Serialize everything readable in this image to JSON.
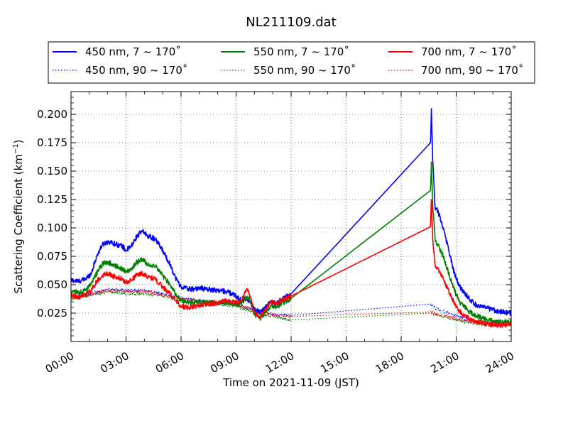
{
  "chart_data": {
    "type": "line",
    "title": "NL211109.dat",
    "xlabel": "Time on 2021-11-09 (JST)",
    "ylabel_main": "Scattering Coefficient (km",
    "ylabel_sup": "−1",
    "ylabel_tail": ")",
    "xlim": [
      0,
      24
    ],
    "ylim": [
      0,
      0.22
    ],
    "x_ticks": [
      0,
      3,
      6,
      9,
      12,
      15,
      18,
      21,
      24
    ],
    "x_tick_labels": [
      "00:00",
      "03:00",
      "06:00",
      "09:00",
      "12:00",
      "15:00",
      "18:00",
      "21:00",
      "24:00"
    ],
    "y_ticks": [
      0.025,
      0.05,
      0.075,
      0.1,
      0.125,
      0.15,
      0.175,
      0.2
    ],
    "y_tick_labels": [
      "0.025",
      "0.050",
      "0.075",
      "0.100",
      "0.125",
      "0.150",
      "0.175",
      "0.200"
    ],
    "grid": true,
    "legend_placement": "top",
    "series": [
      {
        "name": "450 nm, 7 ~ 170˚",
        "color": "#0000ff",
        "style": "solid",
        "points": [
          [
            0,
            0.054
          ],
          [
            0.4,
            0.053
          ],
          [
            0.8,
            0.055
          ],
          [
            1.1,
            0.06
          ],
          [
            1.4,
            0.075
          ],
          [
            1.7,
            0.085
          ],
          [
            2.0,
            0.088
          ],
          [
            2.4,
            0.086
          ],
          [
            2.8,
            0.084
          ],
          [
            3.0,
            0.08
          ],
          [
            3.3,
            0.084
          ],
          [
            3.6,
            0.093
          ],
          [
            3.9,
            0.097
          ],
          [
            4.2,
            0.093
          ],
          [
            4.6,
            0.09
          ],
          [
            5.0,
            0.08
          ],
          [
            5.4,
            0.068
          ],
          [
            5.7,
            0.056
          ],
          [
            6.0,
            0.048
          ],
          [
            6.5,
            0.046
          ],
          [
            7.0,
            0.047
          ],
          [
            7.5,
            0.046
          ],
          [
            8.0,
            0.045
          ],
          [
            8.5,
            0.044
          ],
          [
            9.0,
            0.04
          ],
          [
            9.3,
            0.036
          ],
          [
            9.6,
            0.038
          ],
          [
            9.8,
            0.034
          ],
          [
            10.0,
            0.028
          ],
          [
            10.3,
            0.026
          ],
          [
            10.6,
            0.03
          ],
          [
            10.9,
            0.035
          ],
          [
            11.2,
            0.033
          ],
          [
            11.5,
            0.037
          ],
          [
            11.8,
            0.04
          ],
          [
            12.0,
            0.042
          ],
          [
            19.6,
            0.175
          ],
          [
            19.65,
            0.205
          ],
          [
            19.72,
            0.16
          ],
          [
            19.85,
            0.118
          ],
          [
            20.0,
            0.115
          ],
          [
            20.3,
            0.1
          ],
          [
            20.6,
            0.08
          ],
          [
            20.9,
            0.06
          ],
          [
            21.2,
            0.048
          ],
          [
            21.6,
            0.04
          ],
          [
            22.0,
            0.033
          ],
          [
            22.5,
            0.03
          ],
          [
            23.0,
            0.028
          ],
          [
            23.5,
            0.026
          ],
          [
            24.0,
            0.025
          ]
        ]
      },
      {
        "name": "550 nm, 7 ~ 170˚",
        "color": "#008000",
        "style": "solid",
        "points": [
          [
            0,
            0.044
          ],
          [
            0.4,
            0.043
          ],
          [
            0.8,
            0.045
          ],
          [
            1.1,
            0.05
          ],
          [
            1.4,
            0.06
          ],
          [
            1.7,
            0.068
          ],
          [
            2.0,
            0.07
          ],
          [
            2.4,
            0.067
          ],
          [
            2.8,
            0.064
          ],
          [
            3.0,
            0.061
          ],
          [
            3.3,
            0.064
          ],
          [
            3.6,
            0.07
          ],
          [
            3.9,
            0.072
          ],
          [
            4.2,
            0.068
          ],
          [
            4.6,
            0.066
          ],
          [
            5.0,
            0.058
          ],
          [
            5.4,
            0.05
          ],
          [
            5.7,
            0.042
          ],
          [
            6.0,
            0.036
          ],
          [
            6.5,
            0.034
          ],
          [
            7.0,
            0.035
          ],
          [
            7.5,
            0.034
          ],
          [
            8.0,
            0.034
          ],
          [
            8.5,
            0.035
          ],
          [
            9.0,
            0.032
          ],
          [
            9.3,
            0.034
          ],
          [
            9.6,
            0.04
          ],
          [
            9.8,
            0.035
          ],
          [
            10.0,
            0.024
          ],
          [
            10.3,
            0.02
          ],
          [
            10.6,
            0.026
          ],
          [
            10.9,
            0.032
          ],
          [
            11.2,
            0.03
          ],
          [
            11.5,
            0.034
          ],
          [
            11.8,
            0.036
          ],
          [
            12.0,
            0.038
          ],
          [
            19.6,
            0.133
          ],
          [
            19.65,
            0.158
          ],
          [
            19.72,
            0.12
          ],
          [
            19.85,
            0.09
          ],
          [
            20.0,
            0.085
          ],
          [
            20.3,
            0.075
          ],
          [
            20.6,
            0.06
          ],
          [
            20.9,
            0.045
          ],
          [
            21.2,
            0.035
          ],
          [
            21.6,
            0.028
          ],
          [
            22.0,
            0.023
          ],
          [
            22.5,
            0.02
          ],
          [
            23.0,
            0.018
          ],
          [
            23.5,
            0.017
          ],
          [
            24.0,
            0.017
          ]
        ]
      },
      {
        "name": "700 nm, 7 ~ 170˚",
        "color": "#ff0000",
        "style": "solid",
        "points": [
          [
            0,
            0.04
          ],
          [
            0.4,
            0.039
          ],
          [
            0.8,
            0.041
          ],
          [
            1.1,
            0.045
          ],
          [
            1.4,
            0.053
          ],
          [
            1.7,
            0.058
          ],
          [
            2.0,
            0.06
          ],
          [
            2.4,
            0.057
          ],
          [
            2.8,
            0.055
          ],
          [
            3.0,
            0.052
          ],
          [
            3.3,
            0.054
          ],
          [
            3.6,
            0.059
          ],
          [
            3.9,
            0.06
          ],
          [
            4.2,
            0.057
          ],
          [
            4.6,
            0.055
          ],
          [
            5.0,
            0.048
          ],
          [
            5.4,
            0.042
          ],
          [
            5.7,
            0.036
          ],
          [
            6.0,
            0.031
          ],
          [
            6.5,
            0.03
          ],
          [
            7.0,
            0.032
          ],
          [
            7.5,
            0.033
          ],
          [
            8.0,
            0.034
          ],
          [
            8.5,
            0.036
          ],
          [
            9.0,
            0.034
          ],
          [
            9.3,
            0.036
          ],
          [
            9.6,
            0.046
          ],
          [
            9.8,
            0.038
          ],
          [
            10.0,
            0.026
          ],
          [
            10.3,
            0.022
          ],
          [
            10.6,
            0.028
          ],
          [
            10.9,
            0.035
          ],
          [
            11.2,
            0.033
          ],
          [
            11.5,
            0.037
          ],
          [
            11.8,
            0.039
          ],
          [
            12.0,
            0.04
          ],
          [
            19.6,
            0.101
          ],
          [
            19.65,
            0.125
          ],
          [
            19.72,
            0.09
          ],
          [
            19.85,
            0.068
          ],
          [
            20.0,
            0.064
          ],
          [
            20.3,
            0.055
          ],
          [
            20.6,
            0.044
          ],
          [
            20.9,
            0.034
          ],
          [
            21.2,
            0.026
          ],
          [
            21.6,
            0.021
          ],
          [
            22.0,
            0.018
          ],
          [
            22.5,
            0.016
          ],
          [
            23.0,
            0.015
          ],
          [
            23.5,
            0.014
          ],
          [
            24.0,
            0.015
          ]
        ]
      },
      {
        "name": "450 nm, 90 ~ 170˚",
        "color": "#0000ff",
        "style": "dotted",
        "points": [
          [
            0,
            0.04
          ],
          [
            1.0,
            0.042
          ],
          [
            2.0,
            0.046
          ],
          [
            3.0,
            0.045
          ],
          [
            4.0,
            0.045
          ],
          [
            5.0,
            0.042
          ],
          [
            6.0,
            0.038
          ],
          [
            7.0,
            0.036
          ],
          [
            8.0,
            0.034
          ],
          [
            9.0,
            0.032
          ],
          [
            10.0,
            0.028
          ],
          [
            11.0,
            0.024
          ],
          [
            12.0,
            0.023
          ],
          [
            19.6,
            0.033
          ],
          [
            19.8,
            0.03
          ],
          [
            20.2,
            0.027
          ],
          [
            20.8,
            0.024
          ],
          [
            21.5,
            0.02
          ],
          [
            22.5,
            0.017
          ],
          [
            24.0,
            0.016
          ]
        ]
      },
      {
        "name": "550 nm, 90 ~ 170˚",
        "color": "#008000",
        "style": "dotted",
        "points": [
          [
            0,
            0.038
          ],
          [
            1.0,
            0.04
          ],
          [
            2.0,
            0.044
          ],
          [
            3.0,
            0.042
          ],
          [
            4.0,
            0.042
          ],
          [
            5.0,
            0.04
          ],
          [
            6.0,
            0.036
          ],
          [
            7.0,
            0.034
          ],
          [
            8.0,
            0.033
          ],
          [
            9.0,
            0.031
          ],
          [
            10.0,
            0.026
          ],
          [
            11.0,
            0.022
          ],
          [
            12.0,
            0.019
          ],
          [
            19.6,
            0.025
          ],
          [
            19.8,
            0.024
          ],
          [
            20.2,
            0.022
          ],
          [
            20.8,
            0.02
          ],
          [
            21.5,
            0.017
          ],
          [
            22.5,
            0.015
          ],
          [
            24.0,
            0.014
          ]
        ]
      },
      {
        "name": "700 nm, 90 ~ 170˚",
        "color": "#ff0000",
        "style": "dotted",
        "points": [
          [
            0,
            0.039
          ],
          [
            1.0,
            0.041
          ],
          [
            2.0,
            0.045
          ],
          [
            3.0,
            0.044
          ],
          [
            4.0,
            0.044
          ],
          [
            5.0,
            0.041
          ],
          [
            6.0,
            0.038
          ],
          [
            7.0,
            0.036
          ],
          [
            8.0,
            0.035
          ],
          [
            9.0,
            0.033
          ],
          [
            10.0,
            0.027
          ],
          [
            11.0,
            0.023
          ],
          [
            12.0,
            0.022
          ],
          [
            19.6,
            0.026
          ],
          [
            19.8,
            0.025
          ],
          [
            20.2,
            0.023
          ],
          [
            20.8,
            0.021
          ],
          [
            21.5,
            0.018
          ],
          [
            22.5,
            0.016
          ],
          [
            24.0,
            0.015
          ]
        ]
      }
    ]
  }
}
